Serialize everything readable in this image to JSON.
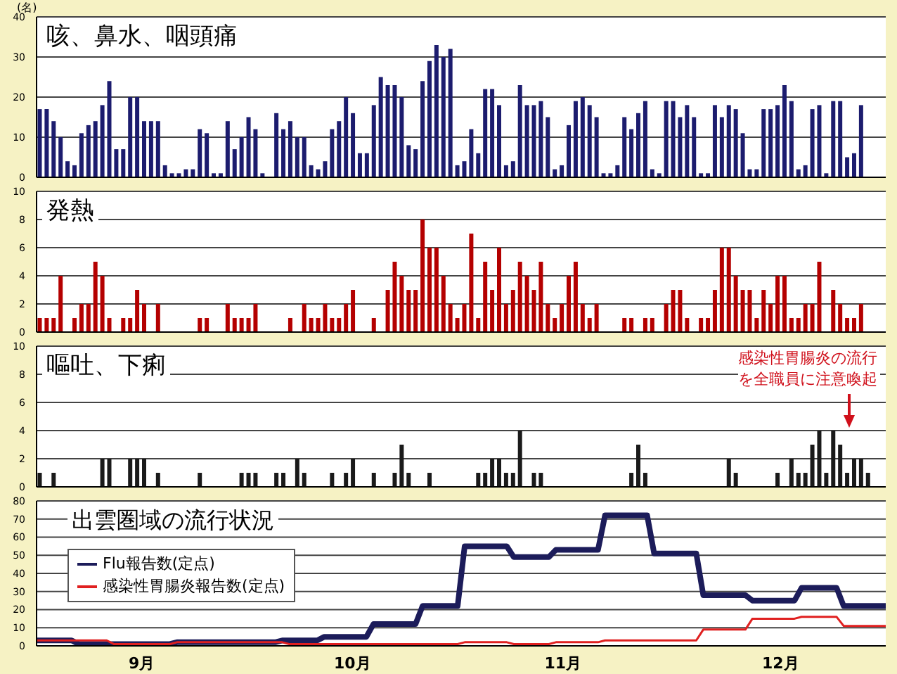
{
  "chart_data": [
    {
      "type": "bar",
      "title": "咳、鼻水、咽頭痛",
      "ylabel": "(名)",
      "grid": "y",
      "tick_labels": "y",
      "ylim": [
        0,
        40
      ],
      "yticks": [
        0,
        10,
        20,
        30,
        40
      ],
      "categories": [
        null,
        null,
        null,
        null,
        null,
        null,
        null,
        null,
        null,
        null,
        null,
        null,
        null,
        null,
        null,
        null,
        null,
        null,
        null,
        null,
        null,
        null,
        null,
        null,
        null,
        null,
        null,
        null,
        null,
        null,
        null,
        null,
        null,
        null,
        null,
        null,
        null,
        null,
        null,
        null,
        null,
        null,
        null,
        null,
        null,
        null,
        null,
        null,
        null,
        null,
        null,
        null,
        null,
        null,
        null,
        null,
        null,
        null,
        null,
        null,
        null,
        null,
        null,
        null,
        null,
        null,
        null,
        null,
        null,
        null,
        null,
        null,
        null,
        null,
        null,
        null,
        null,
        null,
        null,
        null,
        null,
        null,
        null,
        null,
        null,
        null,
        null,
        null,
        null,
        null,
        null,
        null,
        null,
        null,
        null,
        null,
        null,
        null,
        null,
        null,
        null,
        null,
        null,
        null,
        null,
        null,
        null,
        null,
        null,
        null,
        null,
        null,
        null,
        null,
        null,
        null,
        null,
        null,
        null,
        null,
        null,
        null
      ],
      "series": [
        {
          "color": "#1c1c6e",
          "values": [
            17,
            17,
            14,
            10,
            4,
            3,
            11,
            13,
            14,
            18,
            24,
            7,
            7,
            20,
            20,
            14,
            14,
            14,
            3,
            1,
            1,
            2,
            2,
            12,
            11,
            1,
            1,
            14,
            7,
            10,
            15,
            12,
            1,
            0,
            16,
            12,
            14,
            10,
            10,
            3,
            2,
            4,
            12,
            14,
            20,
            16,
            6,
            6,
            18,
            25,
            23,
            23,
            20,
            8,
            7,
            24,
            29,
            33,
            30,
            32,
            3,
            4,
            12,
            6,
            22,
            22,
            18,
            3,
            4,
            23,
            18,
            18,
            19,
            15,
            2,
            3,
            13,
            19,
            20,
            18,
            15,
            1,
            1,
            3,
            15,
            12,
            16,
            19,
            2,
            1,
            19,
            19,
            15,
            18,
            15,
            1,
            1,
            18,
            15,
            18,
            17,
            11,
            2,
            2,
            17,
            17,
            18,
            23,
            19,
            2,
            3,
            17,
            18,
            1,
            19,
            19,
            5,
            6,
            18,
            0,
            0,
            0
          ]
        }
      ]
    },
    {
      "type": "bar",
      "title": "発熱",
      "grid": "y",
      "tick_labels": "y",
      "ylim": [
        0,
        10
      ],
      "yticks": [
        0,
        2,
        4,
        6,
        8,
        10
      ],
      "categories": [
        null,
        null,
        null,
        null,
        null,
        null,
        null,
        null,
        null,
        null,
        null,
        null,
        null,
        null,
        null,
        null,
        null,
        null,
        null,
        null,
        null,
        null,
        null,
        null,
        null,
        null,
        null,
        null,
        null,
        null,
        null,
        null,
        null,
        null,
        null,
        null,
        null,
        null,
        null,
        null,
        null,
        null,
        null,
        null,
        null,
        null,
        null,
        null,
        null,
        null,
        null,
        null,
        null,
        null,
        null,
        null,
        null,
        null,
        null,
        null,
        null,
        null,
        null,
        null,
        null,
        null,
        null,
        null,
        null,
        null,
        null,
        null,
        null,
        null,
        null,
        null,
        null,
        null,
        null,
        null,
        null,
        null,
        null,
        null,
        null,
        null,
        null,
        null,
        null,
        null,
        null,
        null,
        null,
        null,
        null,
        null,
        null,
        null,
        null,
        null,
        null,
        null,
        null,
        null,
        null,
        null,
        null,
        null,
        null,
        null,
        null,
        null,
        null,
        null,
        null,
        null,
        null,
        null,
        null,
        null,
        null,
        null
      ],
      "series": [
        {
          "color": "#b40000",
          "values": [
            1,
            1,
            1,
            4,
            0,
            1,
            2,
            2,
            5,
            4,
            1,
            0,
            1,
            1,
            3,
            2,
            0,
            2,
            0,
            0,
            0,
            0,
            0,
            1,
            1,
            0,
            0,
            2,
            1,
            1,
            1,
            2,
            0,
            0,
            0,
            0,
            1,
            0,
            2,
            1,
            1,
            2,
            1,
            1,
            2,
            3,
            0,
            0,
            1,
            0,
            3,
            5,
            4,
            3,
            3,
            8,
            6,
            6,
            4,
            2,
            1,
            2,
            7,
            1,
            5,
            3,
            6,
            2,
            3,
            5,
            4,
            3,
            5,
            2,
            1,
            2,
            4,
            5,
            2,
            1,
            2,
            0,
            0,
            0,
            1,
            1,
            0,
            1,
            1,
            0,
            2,
            3,
            3,
            1,
            0,
            1,
            1,
            3,
            6,
            6,
            4,
            3,
            3,
            1,
            3,
            2,
            4,
            4,
            1,
            1,
            2,
            2,
            5,
            0,
            3,
            2,
            1,
            1,
            2,
            0,
            0,
            0
          ]
        }
      ]
    },
    {
      "type": "bar",
      "title": "嘔吐、下痢",
      "grid": "y",
      "tick_labels": "y",
      "ylim": [
        0,
        10
      ],
      "yticks": [
        0,
        2,
        4,
        6,
        8,
        10
      ],
      "annotations": [
        "感染性胃腸炎の流行を全職員に注意喚起"
      ],
      "categories": [
        null,
        null,
        null,
        null,
        null,
        null,
        null,
        null,
        null,
        null,
        null,
        null,
        null,
        null,
        null,
        null,
        null,
        null,
        null,
        null,
        null,
        null,
        null,
        null,
        null,
        null,
        null,
        null,
        null,
        null,
        null,
        null,
        null,
        null,
        null,
        null,
        null,
        null,
        null,
        null,
        null,
        null,
        null,
        null,
        null,
        null,
        null,
        null,
        null,
        null,
        null,
        null,
        null,
        null,
        null,
        null,
        null,
        null,
        null,
        null,
        null,
        null,
        null,
        null,
        null,
        null,
        null,
        null,
        null,
        null,
        null,
        null,
        null,
        null,
        null,
        null,
        null,
        null,
        null,
        null,
        null,
        null,
        null,
        null,
        null,
        null,
        null,
        null,
        null,
        null,
        null,
        null,
        null,
        null,
        null,
        null,
        null,
        null,
        null,
        null,
        null,
        null,
        null,
        null,
        null,
        null,
        null,
        null,
        null,
        null,
        null,
        null,
        null,
        null,
        null,
        null,
        null,
        null,
        null,
        null,
        null,
        null
      ],
      "series": [
        {
          "color": "#1a1a1a",
          "values": [
            1,
            0,
            1,
            0,
            0,
            0,
            0,
            0,
            0,
            2,
            2,
            0,
            0,
            2,
            2,
            2,
            0,
            1,
            0,
            0,
            0,
            0,
            0,
            1,
            0,
            0,
            0,
            0,
            0,
            1,
            1,
            1,
            0,
            0,
            1,
            1,
            0,
            2,
            1,
            0,
            0,
            0,
            1,
            0,
            1,
            2,
            0,
            0,
            1,
            0,
            0,
            1,
            3,
            1,
            0,
            0,
            1,
            0,
            0,
            0,
            0,
            0,
            0,
            1,
            1,
            2,
            2,
            1,
            1,
            4,
            0,
            1,
            1,
            0,
            0,
            0,
            0,
            0,
            0,
            0,
            0,
            0,
            0,
            0,
            0,
            1,
            3,
            1,
            0,
            0,
            0,
            0,
            0,
            0,
            0,
            0,
            0,
            0,
            0,
            2,
            1,
            0,
            0,
            0,
            0,
            0,
            1,
            0,
            2,
            1,
            1,
            3,
            4,
            1,
            4,
            3,
            1,
            2,
            2,
            1,
            0,
            0
          ]
        }
      ]
    },
    {
      "type": "line",
      "title": "出雲圏域の流行状況",
      "grid": "y",
      "legend": "left",
      "marker": "none",
      "line_style": "solid",
      "ylim": [
        0,
        80
      ],
      "yticks": [
        0,
        10,
        20,
        30,
        40,
        50,
        60,
        70,
        80
      ],
      "categories": [
        null,
        null,
        null,
        null,
        null,
        null,
        null,
        null,
        null,
        null,
        null,
        null,
        null,
        null,
        null,
        "9月",
        null,
        null,
        null,
        null,
        null,
        null,
        null,
        null,
        null,
        null,
        null,
        null,
        null,
        null,
        null,
        null,
        null,
        null,
        null,
        null,
        null,
        null,
        null,
        null,
        null,
        null,
        null,
        null,
        null,
        "10月",
        null,
        null,
        null,
        null,
        null,
        null,
        null,
        null,
        null,
        null,
        null,
        null,
        null,
        null,
        null,
        null,
        null,
        null,
        null,
        null,
        null,
        null,
        null,
        null,
        null,
        null,
        null,
        null,
        null,
        "11月",
        null,
        null,
        null,
        null,
        null,
        null,
        null,
        null,
        null,
        null,
        null,
        null,
        null,
        null,
        null,
        null,
        null,
        null,
        null,
        null,
        null,
        null,
        null,
        null,
        null,
        null,
        null,
        null,
        null,
        null,
        "12月",
        null,
        null,
        null,
        null,
        null,
        null,
        null,
        null,
        null,
        null,
        null,
        null,
        null,
        null,
        null
      ],
      "series": [
        {
          "name": "Flu報告数(定点)",
          "color": "#1c1c5a",
          "values": [
            3,
            3,
            3,
            3,
            3,
            3,
            1,
            1,
            1,
            1,
            1,
            1,
            1,
            1,
            1,
            1,
            1,
            1,
            1,
            1,
            2,
            2,
            2,
            2,
            2,
            2,
            2,
            2,
            2,
            2,
            2,
            2,
            2,
            2,
            2,
            3,
            3,
            3,
            3,
            3,
            3,
            5,
            5,
            5,
            5,
            5,
            5,
            5,
            12,
            12,
            12,
            12,
            12,
            12,
            12,
            22,
            22,
            22,
            22,
            22,
            22,
            55,
            55,
            55,
            55,
            55,
            55,
            55,
            49,
            49,
            49,
            49,
            49,
            49,
            53,
            53,
            53,
            53,
            53,
            53,
            53,
            72,
            72,
            72,
            72,
            72,
            72,
            72,
            51,
            51,
            51,
            51,
            51,
            51,
            51,
            28,
            28,
            28,
            28,
            28,
            28,
            28,
            25,
            25,
            25,
            25,
            25,
            25,
            25,
            32,
            32,
            32,
            32,
            32,
            32,
            22,
            22,
            22,
            22,
            22,
            22,
            22
          ]
        },
        {
          "name": "感染性胃腸炎報告数(定点)",
          "color": "#e02020",
          "values": [
            3,
            3,
            3,
            3,
            3,
            3,
            3,
            3,
            3,
            3,
            3,
            1,
            1,
            1,
            1,
            1,
            1,
            1,
            1,
            1,
            2,
            2,
            2,
            2,
            2,
            2,
            2,
            2,
            2,
            2,
            2,
            2,
            2,
            2,
            2,
            2,
            1,
            1,
            1,
            1,
            1,
            1,
            1,
            1,
            1,
            1,
            1,
            1,
            1,
            1,
            1,
            1,
            1,
            1,
            1,
            1,
            1,
            1,
            1,
            1,
            1,
            2,
            2,
            2,
            2,
            2,
            2,
            2,
            1,
            1,
            1,
            1,
            1,
            1,
            2,
            2,
            2,
            2,
            2,
            2,
            2,
            3,
            3,
            3,
            3,
            3,
            3,
            3,
            3,
            3,
            3,
            3,
            3,
            3,
            3,
            9,
            9,
            9,
            9,
            9,
            9,
            9,
            15,
            15,
            15,
            15,
            15,
            15,
            15,
            16,
            16,
            16,
            16,
            16,
            16,
            11,
            11,
            11,
            11,
            11,
            11,
            11
          ]
        }
      ]
    }
  ]
}
